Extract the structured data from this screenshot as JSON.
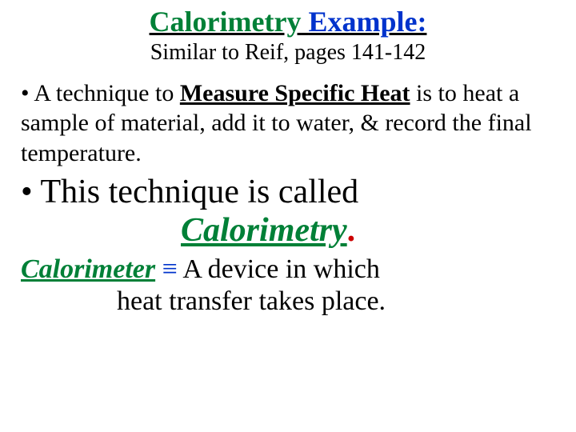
{
  "colors": {
    "text": "#000000",
    "green": "#008037",
    "blue": "#0033cc",
    "red": "#cc0000",
    "background": "#ffffff"
  },
  "typography": {
    "family": "Times New Roman",
    "title_size_pt": 36,
    "subtitle_size_pt": 28,
    "bullet1_size_pt": 30,
    "bullet2_size_pt": 42,
    "definition_size_pt": 34
  },
  "title": {
    "pre": "Calorimetry",
    "post": "Example:"
  },
  "subtitle": "Similar to Reif, pages 141-142",
  "bullet1": {
    "marker": "•",
    "pre": " A technique to ",
    "emph": "Measure Specific Heat",
    "post1": " is to heat a sample of material, add it to water, & record the final temperature."
  },
  "bullet2": {
    "marker": "•",
    "pre": " This technique is called",
    "term": "Calorimetry",
    "period": "."
  },
  "definition": {
    "term": "Calorimeter",
    "equiv": " ≡ ",
    "body1": " A device in which",
    "body2": "heat transfer takes place"
  },
  "finalperiod": "."
}
